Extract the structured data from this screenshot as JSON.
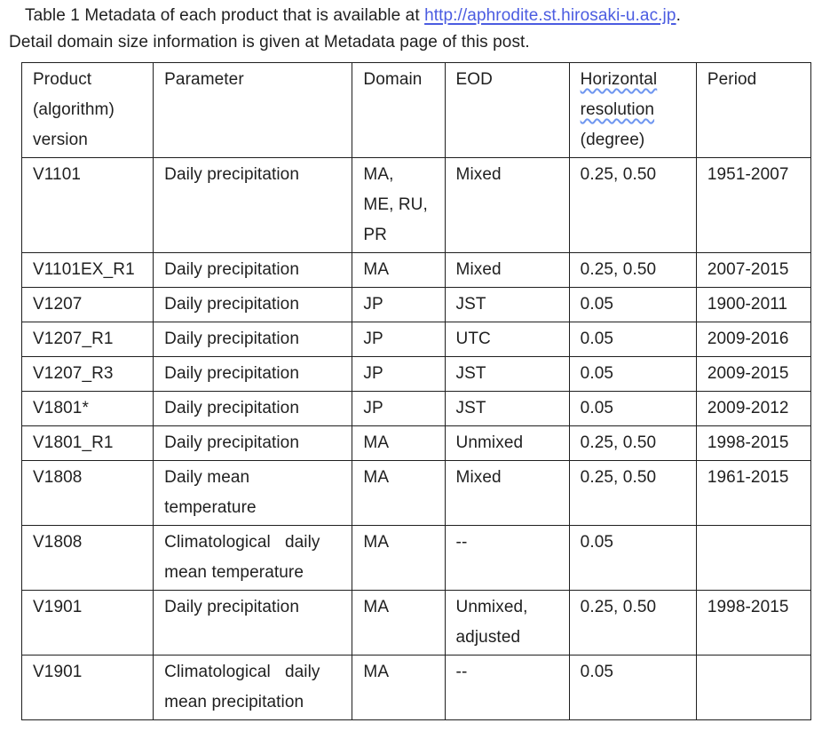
{
  "page": {
    "background": "#ffffff",
    "text_color": "#1f1f1f",
    "border_color": "#1f1f1f"
  },
  "caption": {
    "part1": "Table 1 Metadata of each product that is available at ",
    "link_text": "http://aphrodite.st.hirosaki-u.ac.jp",
    "link_color": "#4b5ce1",
    "part2": ".",
    "line2": "Detail domain size information is given at Metadata page of this post."
  },
  "table": {
    "squiggle_color": "#6e96f0",
    "header": {
      "product": "Product\n(algorithm)\nversion",
      "parameter": "Parameter",
      "domain": "Domain",
      "eod": "EOD",
      "hres_line1": "Horizontal",
      "hres_line2": "resolution",
      "hres_line3": "(degree)",
      "period": "Period"
    },
    "rows": [
      [
        "V1101",
        "Daily precipitation",
        "MA,\nME, RU,\nPR",
        "Mixed",
        "0.25, 0.50",
        "1951-2007"
      ],
      [
        "V1101EX_R1",
        "Daily precipitation",
        "MA",
        "Mixed",
        "0.25, 0.50",
        "2007-2015"
      ],
      [
        "V1207",
        "Daily precipitation",
        "JP",
        "JST",
        "0.05",
        "1900-2011"
      ],
      [
        "V1207_R1",
        "Daily precipitation",
        "JP",
        "UTC",
        "0.05",
        "2009-2016"
      ],
      [
        "V1207_R3",
        "Daily precipitation",
        "JP",
        "JST",
        "0.05",
        "2009-2015"
      ],
      [
        "V1801*",
        "Daily precipitation",
        "JP",
        "JST",
        "0.05",
        "2009-2012"
      ],
      [
        "V1801_R1",
        "Daily precipitation",
        "MA",
        "Unmixed",
        "0.25, 0.50",
        "1998-2015"
      ],
      [
        "V1808",
        "Daily mean\ntemperature",
        "MA",
        "Mixed",
        "0.25, 0.50",
        "1961-2015"
      ],
      [
        "V1808",
        "Climatological   daily\nmean temperature",
        "MA",
        "--",
        "0.05",
        ""
      ],
      [
        "V1901",
        "Daily precipitation",
        "MA",
        "Unmixed,\nadjusted",
        "0.25, 0.50",
        "1998-2015"
      ],
      [
        "V1901",
        "Climatological   daily\nmean precipitation",
        "MA",
        "--",
        "0.05",
        ""
      ]
    ]
  }
}
